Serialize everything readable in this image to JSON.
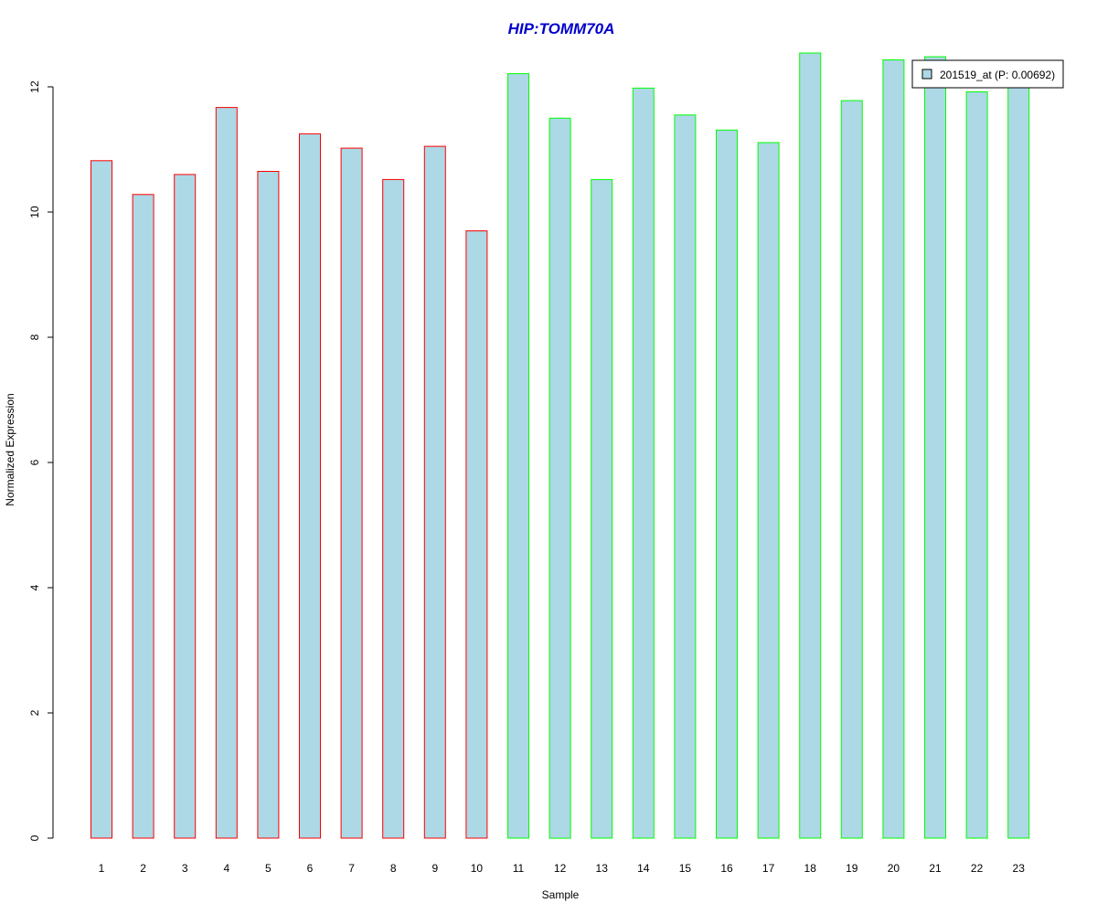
{
  "colors": {
    "bar_fill": "#add8e6",
    "group1_border": "#ff0000",
    "group2_border": "#00ff00",
    "title": "#0000cc",
    "axis": "#000000",
    "background": "#ffffff"
  },
  "chart_data": {
    "type": "bar",
    "title": "HIP:TOMM70A",
    "xlabel": "Sample",
    "ylabel": "Normalized Expression",
    "ylim": [
      0,
      12.5
    ],
    "yticks": [
      "0",
      "2",
      "4",
      "6",
      "8",
      "10",
      "12"
    ],
    "grid": false,
    "legend_position": "top-right",
    "categories": [
      "1",
      "2",
      "3",
      "4",
      "5",
      "6",
      "7",
      "8",
      "9",
      "10",
      "11",
      "12",
      "13",
      "14",
      "15",
      "16",
      "17",
      "18",
      "19",
      "20",
      "21",
      "22",
      "23"
    ],
    "series": [
      {
        "name": "201519_at (P: 0.00692)",
        "values": [
          10.82,
          10.28,
          10.6,
          11.67,
          10.65,
          11.25,
          11.02,
          10.52,
          11.05,
          9.7,
          12.21,
          11.5,
          10.52,
          11.98,
          11.55,
          11.31,
          11.11,
          12.54,
          11.78,
          12.43,
          12.48,
          11.92,
          12.06
        ]
      }
    ],
    "groups": [
      {
        "border": "#ff0000",
        "from": 1,
        "to": 10
      },
      {
        "border": "#00ff00",
        "from": 11,
        "to": 23
      }
    ]
  }
}
